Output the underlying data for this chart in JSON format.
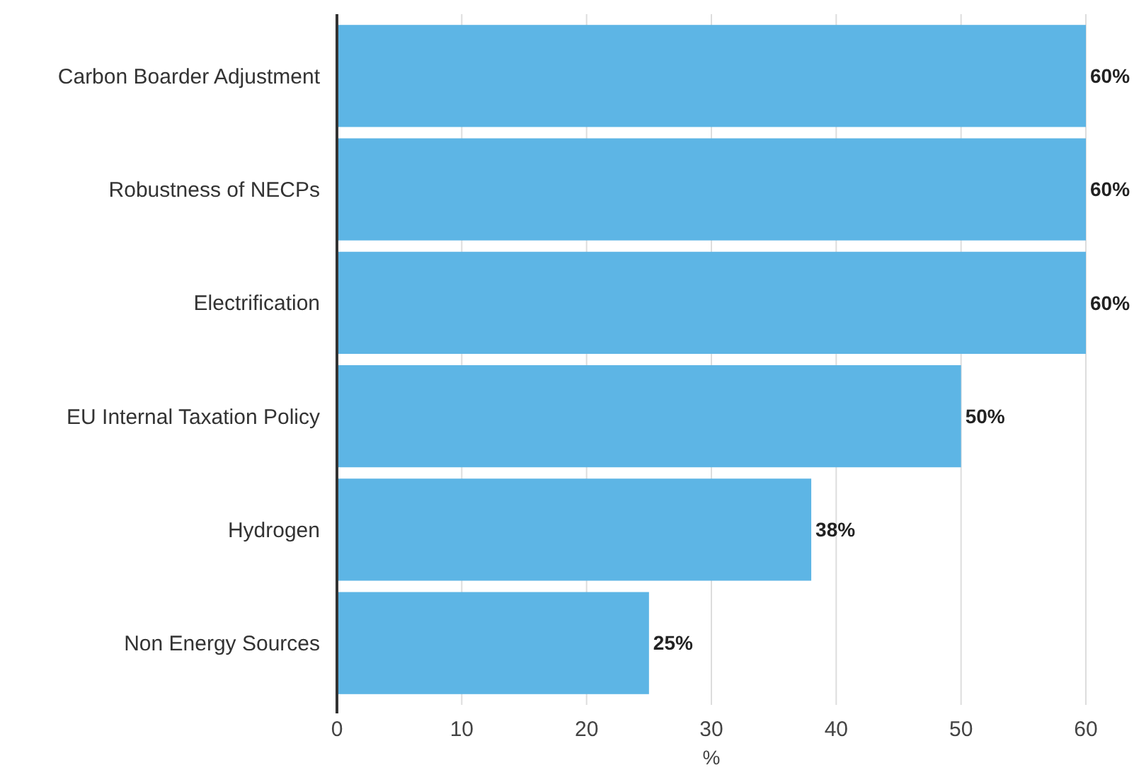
{
  "chart_data": {
    "type": "bar",
    "orientation": "horizontal",
    "xlabel": "%",
    "categories": [
      "Carbon Boarder Adjustment",
      "Robustness of NECPs",
      "Electrification",
      "EU Internal Taxation Policy",
      "Hydrogen",
      "Non Energy Sources"
    ],
    "values": [
      60,
      60,
      60,
      50,
      38,
      25
    ],
    "value_labels": [
      "60%",
      "60%",
      "60%",
      "50%",
      "38%",
      "25%"
    ],
    "color": "#5db5e5",
    "xlim": [
      0,
      60
    ],
    "xticks": [
      0,
      10,
      20,
      30,
      40,
      50,
      60
    ],
    "grid": "x"
  }
}
